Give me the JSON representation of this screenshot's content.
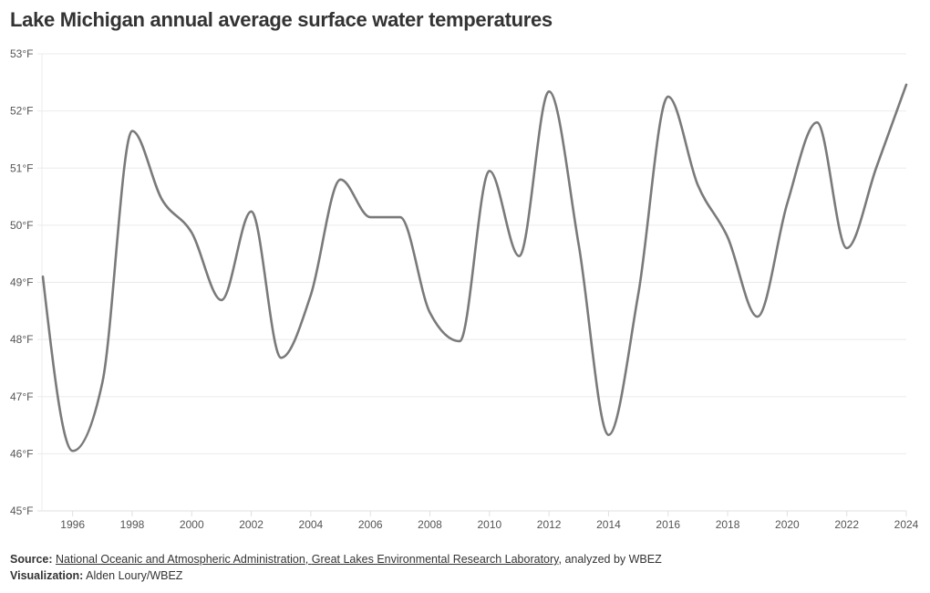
{
  "chart_data": {
    "type": "line",
    "title": "Lake Michigan annual average surface water temperatures",
    "xlabel": "",
    "ylabel": "",
    "x": [
      1995,
      1996,
      1997,
      1998,
      1999,
      2000,
      2001,
      2002,
      2003,
      2004,
      2005,
      2006,
      2007,
      2008,
      2009,
      2010,
      2011,
      2012,
      2013,
      2014,
      2015,
      2016,
      2017,
      2018,
      2019,
      2020,
      2021,
      2022,
      2023,
      2024
    ],
    "series": [
      {
        "name": "Annual average surface water temperature (°F)",
        "color": "#7a7a7a",
        "values": [
          49.1,
          46.05,
          47.25,
          51.65,
          50.45,
          49.87,
          48.69,
          50.24,
          47.68,
          48.78,
          50.8,
          50.14,
          50.14,
          48.47,
          47.97,
          50.95,
          49.46,
          52.34,
          49.65,
          46.33,
          48.8,
          52.25,
          50.7,
          49.79,
          48.4,
          50.38,
          51.8,
          49.6,
          51.02,
          52.46
        ]
      }
    ],
    "xlim": [
      1995,
      2024
    ],
    "ylim": [
      45,
      53
    ],
    "y_ticks": [
      45,
      46,
      47,
      48,
      49,
      50,
      51,
      52,
      53
    ],
    "y_tick_labels": [
      "45°F",
      "46°F",
      "47°F",
      "48°F",
      "49°F",
      "50°F",
      "51°F",
      "52°F",
      "53°F"
    ],
    "x_ticks": [
      1996,
      1998,
      2000,
      2002,
      2004,
      2006,
      2008,
      2010,
      2012,
      2014,
      2016,
      2018,
      2020,
      2022,
      2024
    ],
    "x_tick_labels": [
      "1996",
      "1998",
      "2000",
      "2002",
      "2004",
      "2006",
      "2008",
      "2010",
      "2012",
      "2014",
      "2016",
      "2018",
      "2020",
      "2022",
      "2024"
    ],
    "grid": true,
    "legend": "none"
  },
  "footer": {
    "source_label": "Source:",
    "source_link_1": "National Oceanic and Atmospheric Administration",
    "source_separator": ", ",
    "source_link_2": "Great Lakes Environmental Research Laboratory",
    "source_suffix": ", analyzed by WBEZ",
    "viz_label": "Visualization:",
    "viz_value": "Alden Loury/WBEZ"
  },
  "colors": {
    "line": "#7a7a7a",
    "grid": "#ebebeb",
    "axis": "#e0e0e0",
    "text": "#333333"
  }
}
